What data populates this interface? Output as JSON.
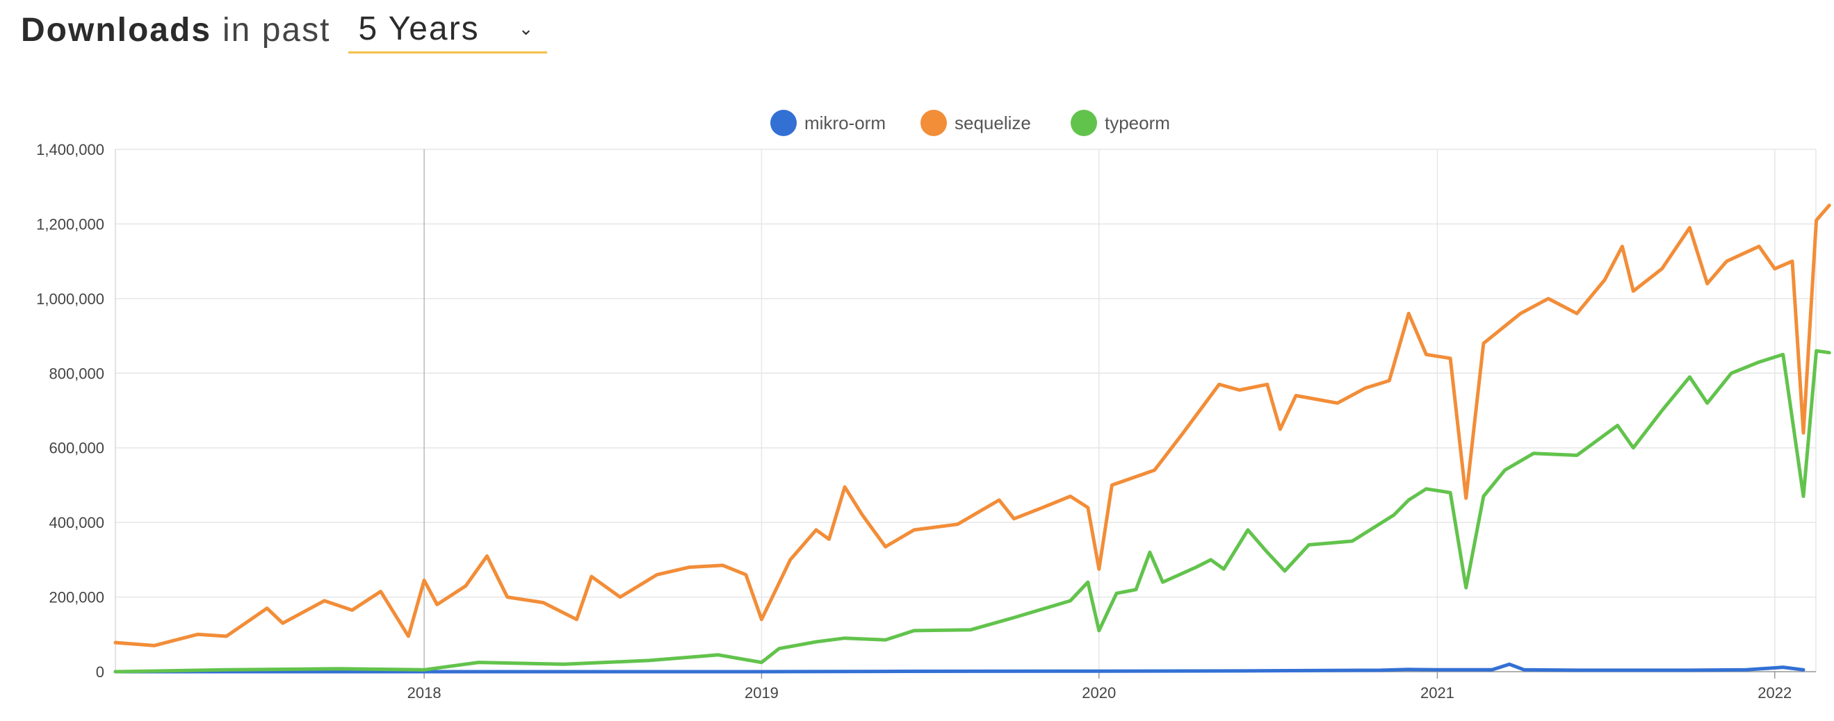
{
  "header": {
    "title": "Downloads",
    "connector": "in past",
    "period": "5 Years"
  },
  "chart_data": {
    "type": "line",
    "title": "",
    "xlabel": "",
    "ylabel": "",
    "x_range": [
      "2017-02-01",
      "2022-02-01"
    ],
    "x_ticks": [
      "2018",
      "2019",
      "2020",
      "2021",
      "2022"
    ],
    "ylim": [
      0,
      1400000
    ],
    "y_ticks": [
      "0",
      "200,000",
      "400,000",
      "600,000",
      "800,000",
      "1,000,000",
      "1,200,000",
      "1,400,000"
    ],
    "grid": true,
    "legend_position": "top-center",
    "series": [
      {
        "name": "mikro-orm",
        "color": "#3370d4",
        "points": [
          [
            "2017-02-01",
            0
          ],
          [
            "2017-06-01",
            0
          ],
          [
            "2018-01-01",
            0
          ],
          [
            "2018-06-01",
            0
          ],
          [
            "2019-01-01",
            0
          ],
          [
            "2019-06-01",
            1000
          ],
          [
            "2020-01-01",
            1500
          ],
          [
            "2020-06-01",
            2000
          ],
          [
            "2020-11-01",
            4000
          ],
          [
            "2020-12-01",
            6000
          ],
          [
            "2021-01-01",
            5000
          ],
          [
            "2021-03-01",
            5000
          ],
          [
            "2021-03-20",
            20000
          ],
          [
            "2021-04-05",
            5000
          ],
          [
            "2021-06-01",
            4000
          ],
          [
            "2021-10-01",
            4000
          ],
          [
            "2021-12-01",
            5000
          ],
          [
            "2022-01-10",
            12000
          ],
          [
            "2022-02-01",
            5000
          ]
        ]
      },
      {
        "name": "sequelize",
        "color": "#f28d38",
        "points": [
          [
            "2017-02-01",
            78000
          ],
          [
            "2017-03-15",
            70000
          ],
          [
            "2017-05-01",
            100000
          ],
          [
            "2017-06-01",
            95000
          ],
          [
            "2017-07-15",
            170000
          ],
          [
            "2017-08-01",
            130000
          ],
          [
            "2017-09-15",
            190000
          ],
          [
            "2017-10-15",
            165000
          ],
          [
            "2017-11-15",
            215000
          ],
          [
            "2017-12-15",
            95000
          ],
          [
            "2018-01-01",
            245000
          ],
          [
            "2018-01-15",
            180000
          ],
          [
            "2018-02-15",
            230000
          ],
          [
            "2018-03-10",
            310000
          ],
          [
            "2018-04-01",
            200000
          ],
          [
            "2018-05-10",
            185000
          ],
          [
            "2018-06-15",
            140000
          ],
          [
            "2018-07-01",
            255000
          ],
          [
            "2018-08-01",
            200000
          ],
          [
            "2018-09-10",
            260000
          ],
          [
            "2018-10-15",
            280000
          ],
          [
            "2018-11-20",
            285000
          ],
          [
            "2018-12-15",
            260000
          ],
          [
            "2019-01-01",
            140000
          ],
          [
            "2019-02-01",
            300000
          ],
          [
            "2019-03-01",
            380000
          ],
          [
            "2019-03-15",
            355000
          ],
          [
            "2019-04-01",
            495000
          ],
          [
            "2019-04-20",
            420000
          ],
          [
            "2019-05-15",
            335000
          ],
          [
            "2019-06-15",
            380000
          ],
          [
            "2019-08-01",
            395000
          ],
          [
            "2019-09-15",
            460000
          ],
          [
            "2019-10-01",
            410000
          ],
          [
            "2019-11-01",
            440000
          ],
          [
            "2019-12-01",
            470000
          ],
          [
            "2019-12-20",
            440000
          ],
          [
            "2020-01-01",
            275000
          ],
          [
            "2020-01-15",
            500000
          ],
          [
            "2020-03-01",
            540000
          ],
          [
            "2020-04-01",
            640000
          ],
          [
            "2020-05-10",
            770000
          ],
          [
            "2020-06-01",
            755000
          ],
          [
            "2020-07-01",
            770000
          ],
          [
            "2020-07-15",
            650000
          ],
          [
            "2020-08-01",
            740000
          ],
          [
            "2020-09-15",
            720000
          ],
          [
            "2020-10-15",
            760000
          ],
          [
            "2020-11-10",
            780000
          ],
          [
            "2020-12-01",
            960000
          ],
          [
            "2020-12-20",
            850000
          ],
          [
            "2021-01-15",
            840000
          ],
          [
            "2021-02-01",
            465000
          ],
          [
            "2021-02-20",
            880000
          ],
          [
            "2021-04-01",
            960000
          ],
          [
            "2021-05-01",
            1000000
          ],
          [
            "2021-06-01",
            960000
          ],
          [
            "2021-07-01",
            1050000
          ],
          [
            "2021-07-20",
            1140000
          ],
          [
            "2021-08-01",
            1020000
          ],
          [
            "2021-09-01",
            1080000
          ],
          [
            "2021-10-01",
            1190000
          ],
          [
            "2021-10-20",
            1040000
          ],
          [
            "2021-11-10",
            1100000
          ],
          [
            "2021-12-15",
            1140000
          ],
          [
            "2022-01-01",
            1080000
          ],
          [
            "2022-01-20",
            1100000
          ],
          [
            "2022-02-01",
            640000
          ],
          [
            "2022-02-15",
            1210000
          ],
          [
            "2022-03-01",
            1250000
          ]
        ]
      },
      {
        "name": "typeorm",
        "color": "#62c34c",
        "points": [
          [
            "2017-02-01",
            0
          ],
          [
            "2017-06-01",
            5000
          ],
          [
            "2017-10-01",
            8000
          ],
          [
            "2018-01-01",
            5000
          ],
          [
            "2018-03-01",
            25000
          ],
          [
            "2018-06-01",
            20000
          ],
          [
            "2018-09-01",
            30000
          ],
          [
            "2018-11-15",
            45000
          ],
          [
            "2019-01-01",
            25000
          ],
          [
            "2019-01-20",
            62000
          ],
          [
            "2019-03-01",
            80000
          ],
          [
            "2019-04-01",
            90000
          ],
          [
            "2019-05-15",
            85000
          ],
          [
            "2019-06-15",
            110000
          ],
          [
            "2019-08-15",
            112000
          ],
          [
            "2019-10-01",
            145000
          ],
          [
            "2019-12-01",
            190000
          ],
          [
            "2019-12-20",
            240000
          ],
          [
            "2020-01-01",
            110000
          ],
          [
            "2020-01-20",
            210000
          ],
          [
            "2020-02-10",
            220000
          ],
          [
            "2020-02-25",
            320000
          ],
          [
            "2020-03-10",
            240000
          ],
          [
            "2020-04-15",
            280000
          ],
          [
            "2020-05-01",
            300000
          ],
          [
            "2020-05-15",
            275000
          ],
          [
            "2020-06-10",
            380000
          ],
          [
            "2020-07-01",
            320000
          ],
          [
            "2020-07-20",
            270000
          ],
          [
            "2020-08-15",
            340000
          ],
          [
            "2020-10-01",
            350000
          ],
          [
            "2020-11-15",
            420000
          ],
          [
            "2020-12-01",
            460000
          ],
          [
            "2020-12-20",
            490000
          ],
          [
            "2021-01-15",
            480000
          ],
          [
            "2021-02-01",
            225000
          ],
          [
            "2021-02-20",
            470000
          ],
          [
            "2021-03-15",
            540000
          ],
          [
            "2021-04-15",
            585000
          ],
          [
            "2021-06-01",
            580000
          ],
          [
            "2021-07-15",
            660000
          ],
          [
            "2021-08-01",
            600000
          ],
          [
            "2021-09-01",
            700000
          ],
          [
            "2021-10-01",
            790000
          ],
          [
            "2021-10-20",
            720000
          ],
          [
            "2021-11-15",
            800000
          ],
          [
            "2021-12-15",
            830000
          ],
          [
            "2022-01-10",
            850000
          ],
          [
            "2022-02-01",
            470000
          ],
          [
            "2022-02-15",
            860000
          ],
          [
            "2022-03-01",
            855000
          ]
        ]
      }
    ]
  }
}
